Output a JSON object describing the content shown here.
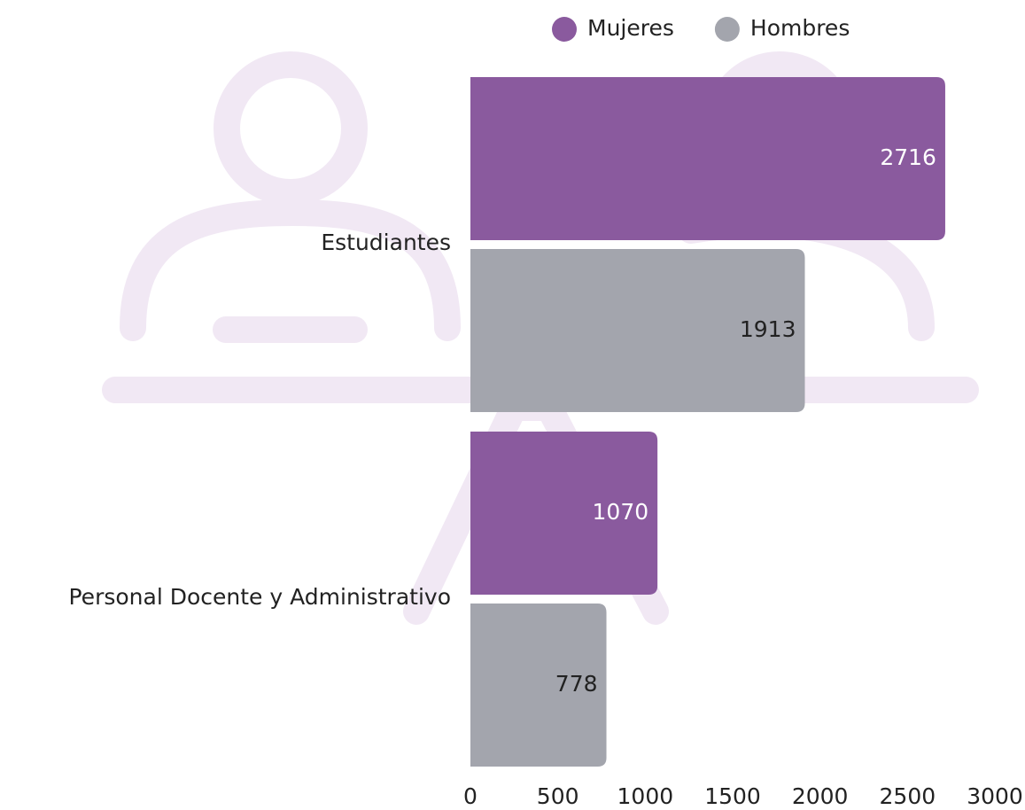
{
  "chart_data": {
    "type": "hbar",
    "categories": [
      "Estudiantes",
      "Personal Docente y Administrativo"
    ],
    "series": [
      {
        "name": "Mujeres",
        "color": "#8a5a9e",
        "values": [
          2716,
          1070
        ]
      },
      {
        "name": "Hombres",
        "color": "#a3a5ad",
        "values": [
          1913,
          778
        ]
      }
    ],
    "xlim": [
      0,
      3000
    ],
    "xticks": [
      0,
      500,
      1000,
      1500,
      2000,
      2500,
      3000
    ],
    "grid": false,
    "legend": "top"
  }
}
